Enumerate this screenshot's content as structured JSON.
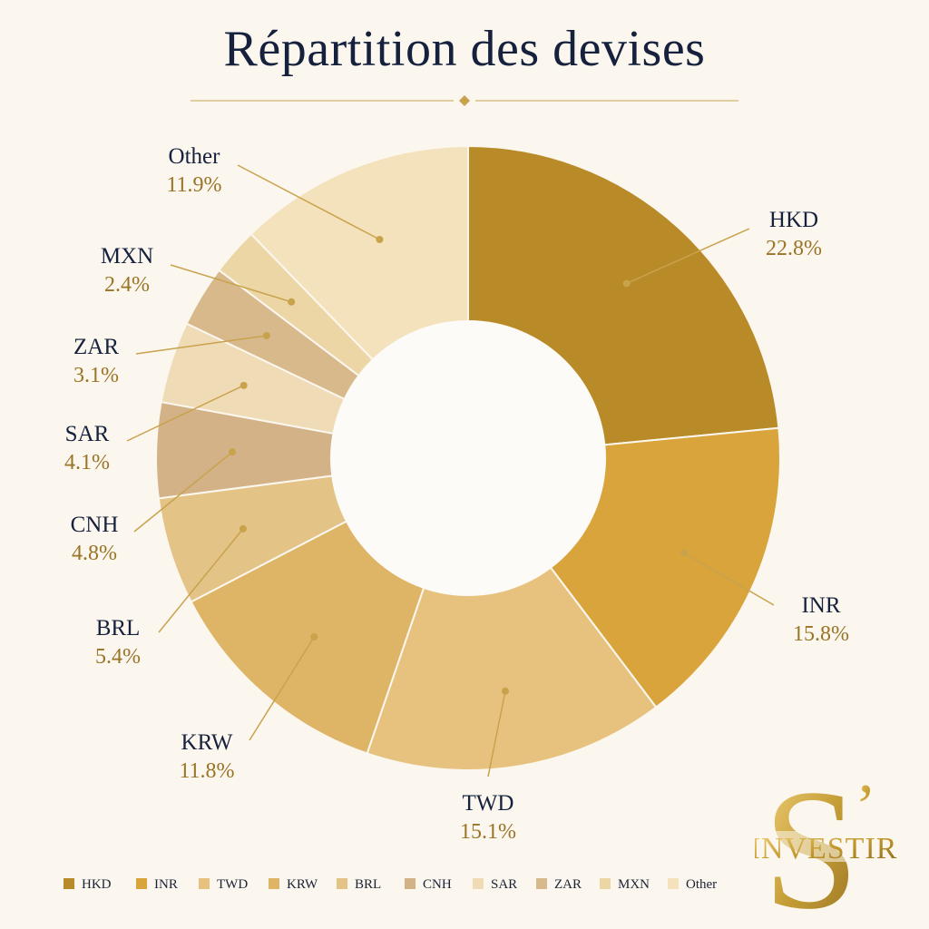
{
  "page": {
    "title": "Répartition des devises",
    "logo_text": "INVESTIR",
    "logo_mark": "S’"
  },
  "colors": {
    "background": "#fbf7ef",
    "title": "#16213e",
    "percent": "#9a7326",
    "leader": "#c9a24c"
  },
  "chart_data": {
    "type": "pie",
    "style": "donut",
    "title": "Répartition des devises",
    "legend_position": "bottom",
    "slices": [
      {
        "label": "HKD",
        "value": 22.8,
        "display": "22.8%",
        "color": "#b98a28"
      },
      {
        "label": "INR",
        "value": 15.8,
        "display": "15.8%",
        "color": "#d9a43c"
      },
      {
        "label": "TWD",
        "value": 15.1,
        "display": "15.1%",
        "color": "#e6c27e"
      },
      {
        "label": "KRW",
        "value": 11.8,
        "display": "11.8%",
        "color": "#deb466"
      },
      {
        "label": "BRL",
        "value": 5.4,
        "display": "5.4%",
        "color": "#e4c386"
      },
      {
        "label": "CNH",
        "value": 4.8,
        "display": "4.8%",
        "color": "#d3b287"
      },
      {
        "label": "SAR",
        "value": 4.1,
        "display": "4.1%",
        "color": "#efdcb6"
      },
      {
        "label": "ZAR",
        "value": 3.1,
        "display": "3.1%",
        "color": "#d8b98c"
      },
      {
        "label": "MXN",
        "value": 2.4,
        "display": "2.4%",
        "color": "#ecd6a6"
      },
      {
        "label": "Other",
        "value": 11.9,
        "display": "11.9%",
        "color": "#f4e2bd"
      }
    ]
  }
}
